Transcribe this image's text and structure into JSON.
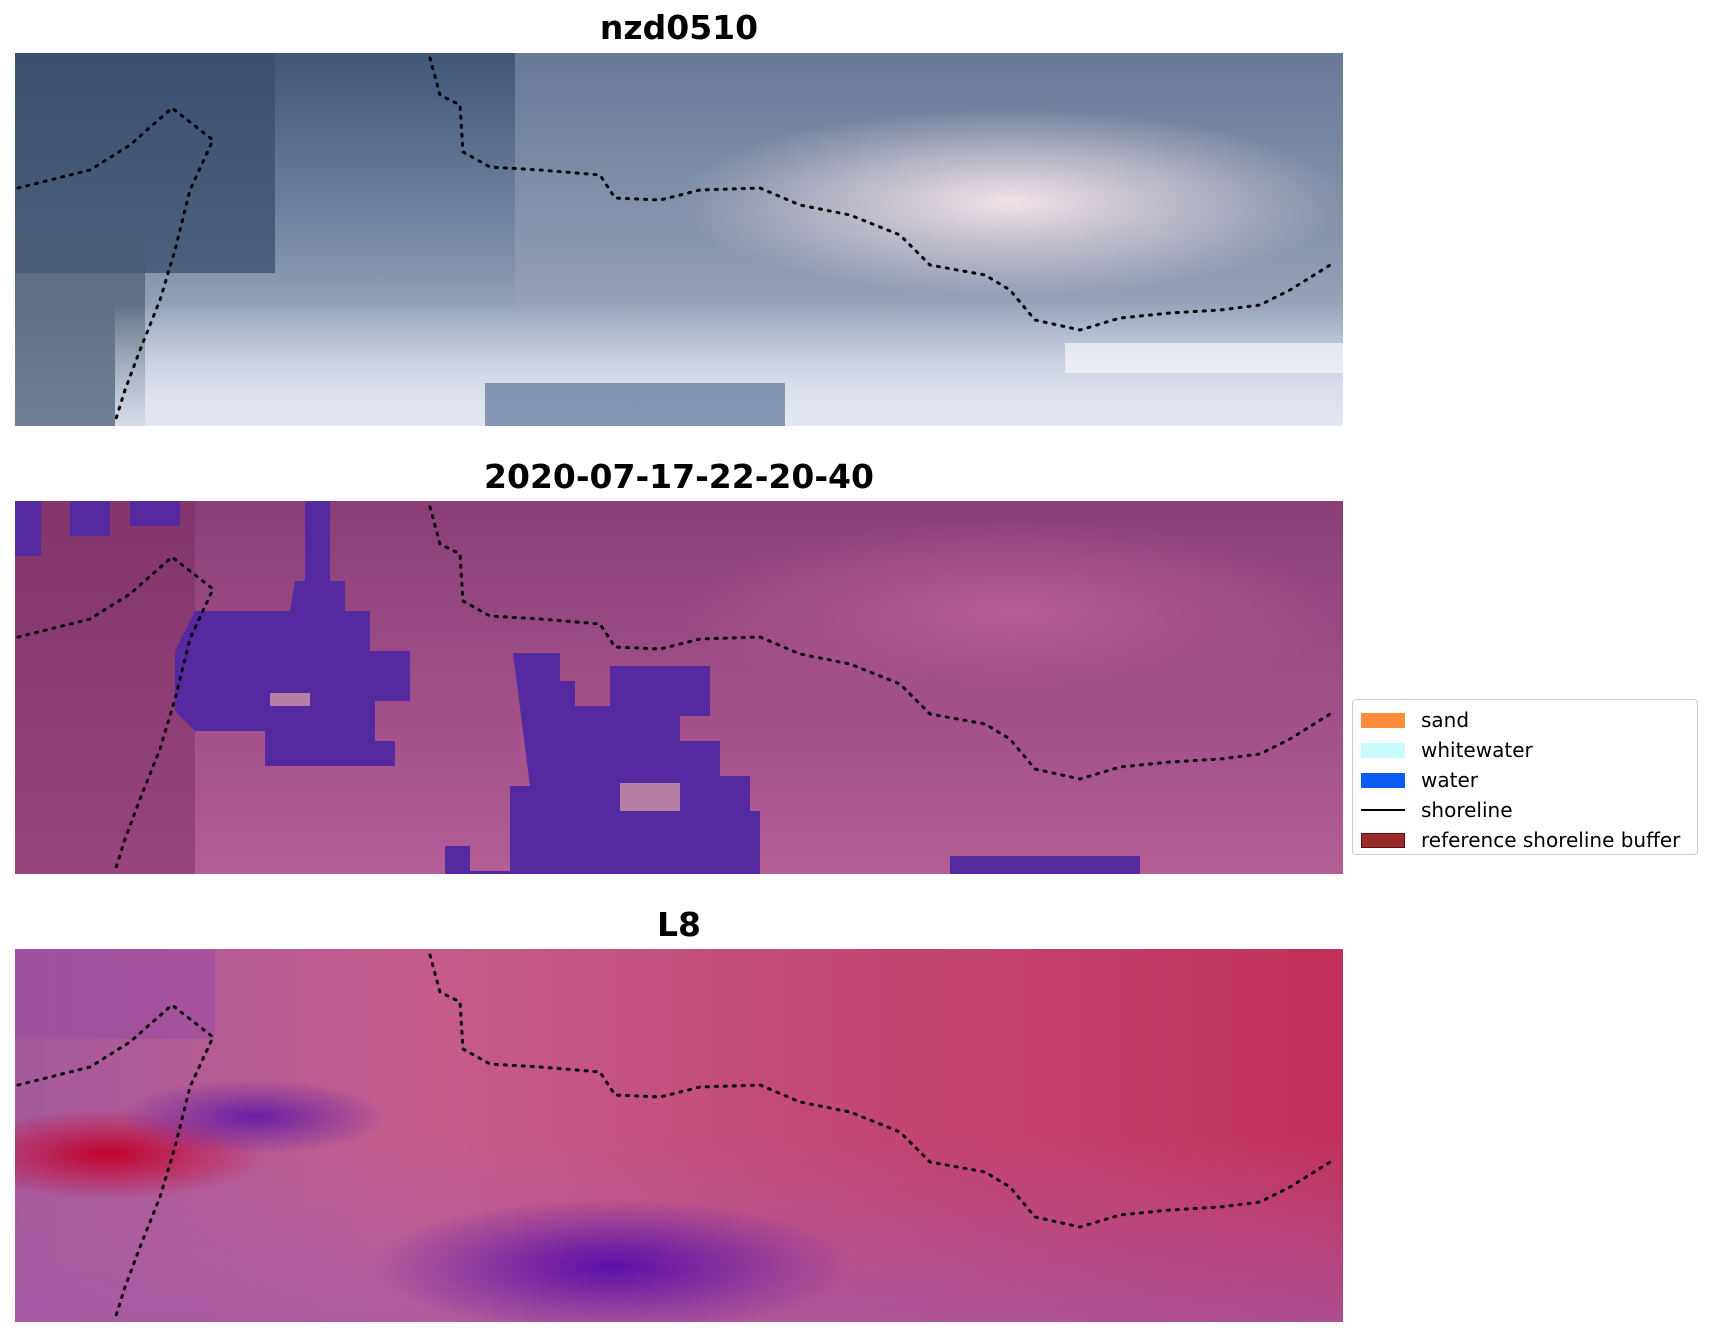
{
  "panels": [
    {
      "title": "nzd0510"
    },
    {
      "title": "2020-07-17-22-20-40"
    },
    {
      "title": "L8"
    }
  ],
  "legend": {
    "items": [
      {
        "label": "sand",
        "color": "#ff8c3a",
        "kind": "patch"
      },
      {
        "label": "whitewater",
        "color": "#c8fbfb",
        "kind": "patch"
      },
      {
        "label": "water",
        "color": "#0a5cf5",
        "kind": "patch"
      },
      {
        "label": "shoreline",
        "color": "#000000",
        "kind": "line"
      },
      {
        "label": "reference shoreline buffer",
        "color": "#9b2a2a",
        "kind": "patch-border"
      }
    ]
  },
  "colors": {
    "rgb_water": "#3d5678",
    "rgb_cloud": "#e6dde6",
    "class_base": "#8a3c78",
    "class_water": "#552aa0",
    "index_land": "#c0305a",
    "index_water": "#6a1fa3",
    "reference_shoreline": "#000000"
  }
}
